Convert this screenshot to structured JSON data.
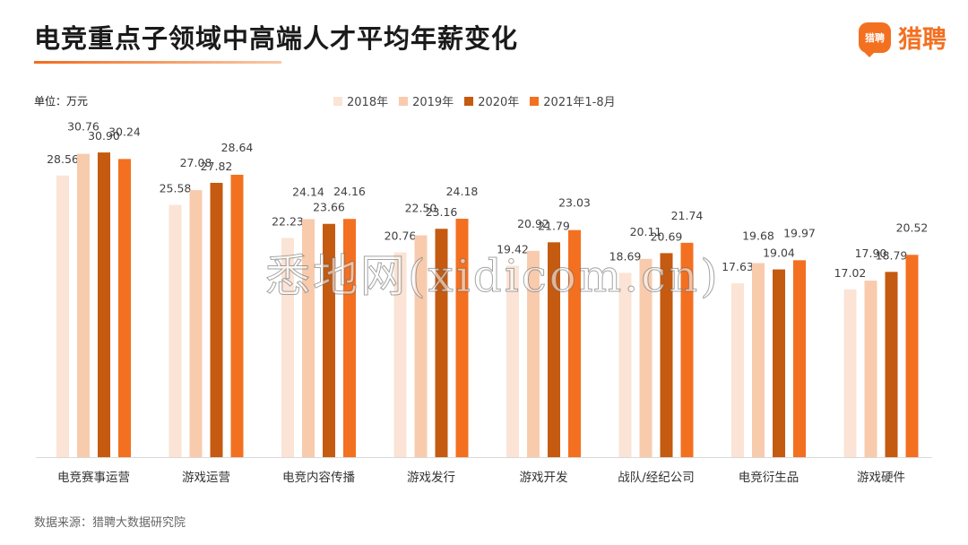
{
  "header": {
    "title": "电竞重点子领域中高端人才平均年薪变化",
    "logo_badge": "猎聘",
    "logo_text": "猎聘"
  },
  "unit_label": "单位：万元",
  "source_label": "数据来源：猎聘大数据研究院",
  "watermark": "悉地网(xidicom.cn)",
  "colors": {
    "series_2018": "#fbe4d5",
    "series_2019": "#f8cbad",
    "series_2020": "#c55a11",
    "series_2021": "#f37021",
    "brand": "#f37021"
  },
  "chart_data": {
    "type": "bar",
    "title": "电竞重点子领域中高端人才平均年薪变化",
    "ylabel": "万元",
    "xlabel": "",
    "ylim": [
      0,
      33
    ],
    "grid": false,
    "legend_position": "top-center",
    "categories": [
      "电竞赛事运营",
      "游戏运营",
      "电竞内容传播",
      "游戏发行",
      "游戏开发",
      "战队/经纪公司",
      "电竞衍生品",
      "游戏硬件"
    ],
    "series": [
      {
        "name": "2018年",
        "values": [
          28.56,
          25.58,
          22.23,
          20.76,
          19.42,
          18.69,
          17.63,
          17.02
        ]
      },
      {
        "name": "2019年",
        "values": [
          30.76,
          27.08,
          24.14,
          22.5,
          20.92,
          20.11,
          19.68,
          17.9
        ]
      },
      {
        "name": "2020年",
        "values": [
          30.9,
          27.82,
          23.66,
          23.16,
          21.79,
          20.69,
          19.04,
          18.79
        ]
      },
      {
        "name": "2021年1-8月",
        "values": [
          30.24,
          28.64,
          24.16,
          24.18,
          23.03,
          21.74,
          19.97,
          20.52
        ]
      }
    ],
    "value_labels": [
      [
        "28.56",
        "25.58",
        "22.23",
        "20.76",
        "19.42",
        "18.69",
        "17.63",
        "17.02"
      ],
      [
        "30.76",
        "27.08",
        "24.14",
        "22.50",
        "20.92",
        "20.11",
        "19.68",
        "17.90"
      ],
      [
        "30.90",
        "27.82",
        "23.66",
        "23.16",
        "21.79",
        "20.69",
        "19.04",
        "18.79"
      ],
      [
        "30.24",
        "28.64",
        "24.16",
        "24.18",
        "23.03",
        "21.74",
        "19.97",
        "20.52"
      ]
    ]
  }
}
